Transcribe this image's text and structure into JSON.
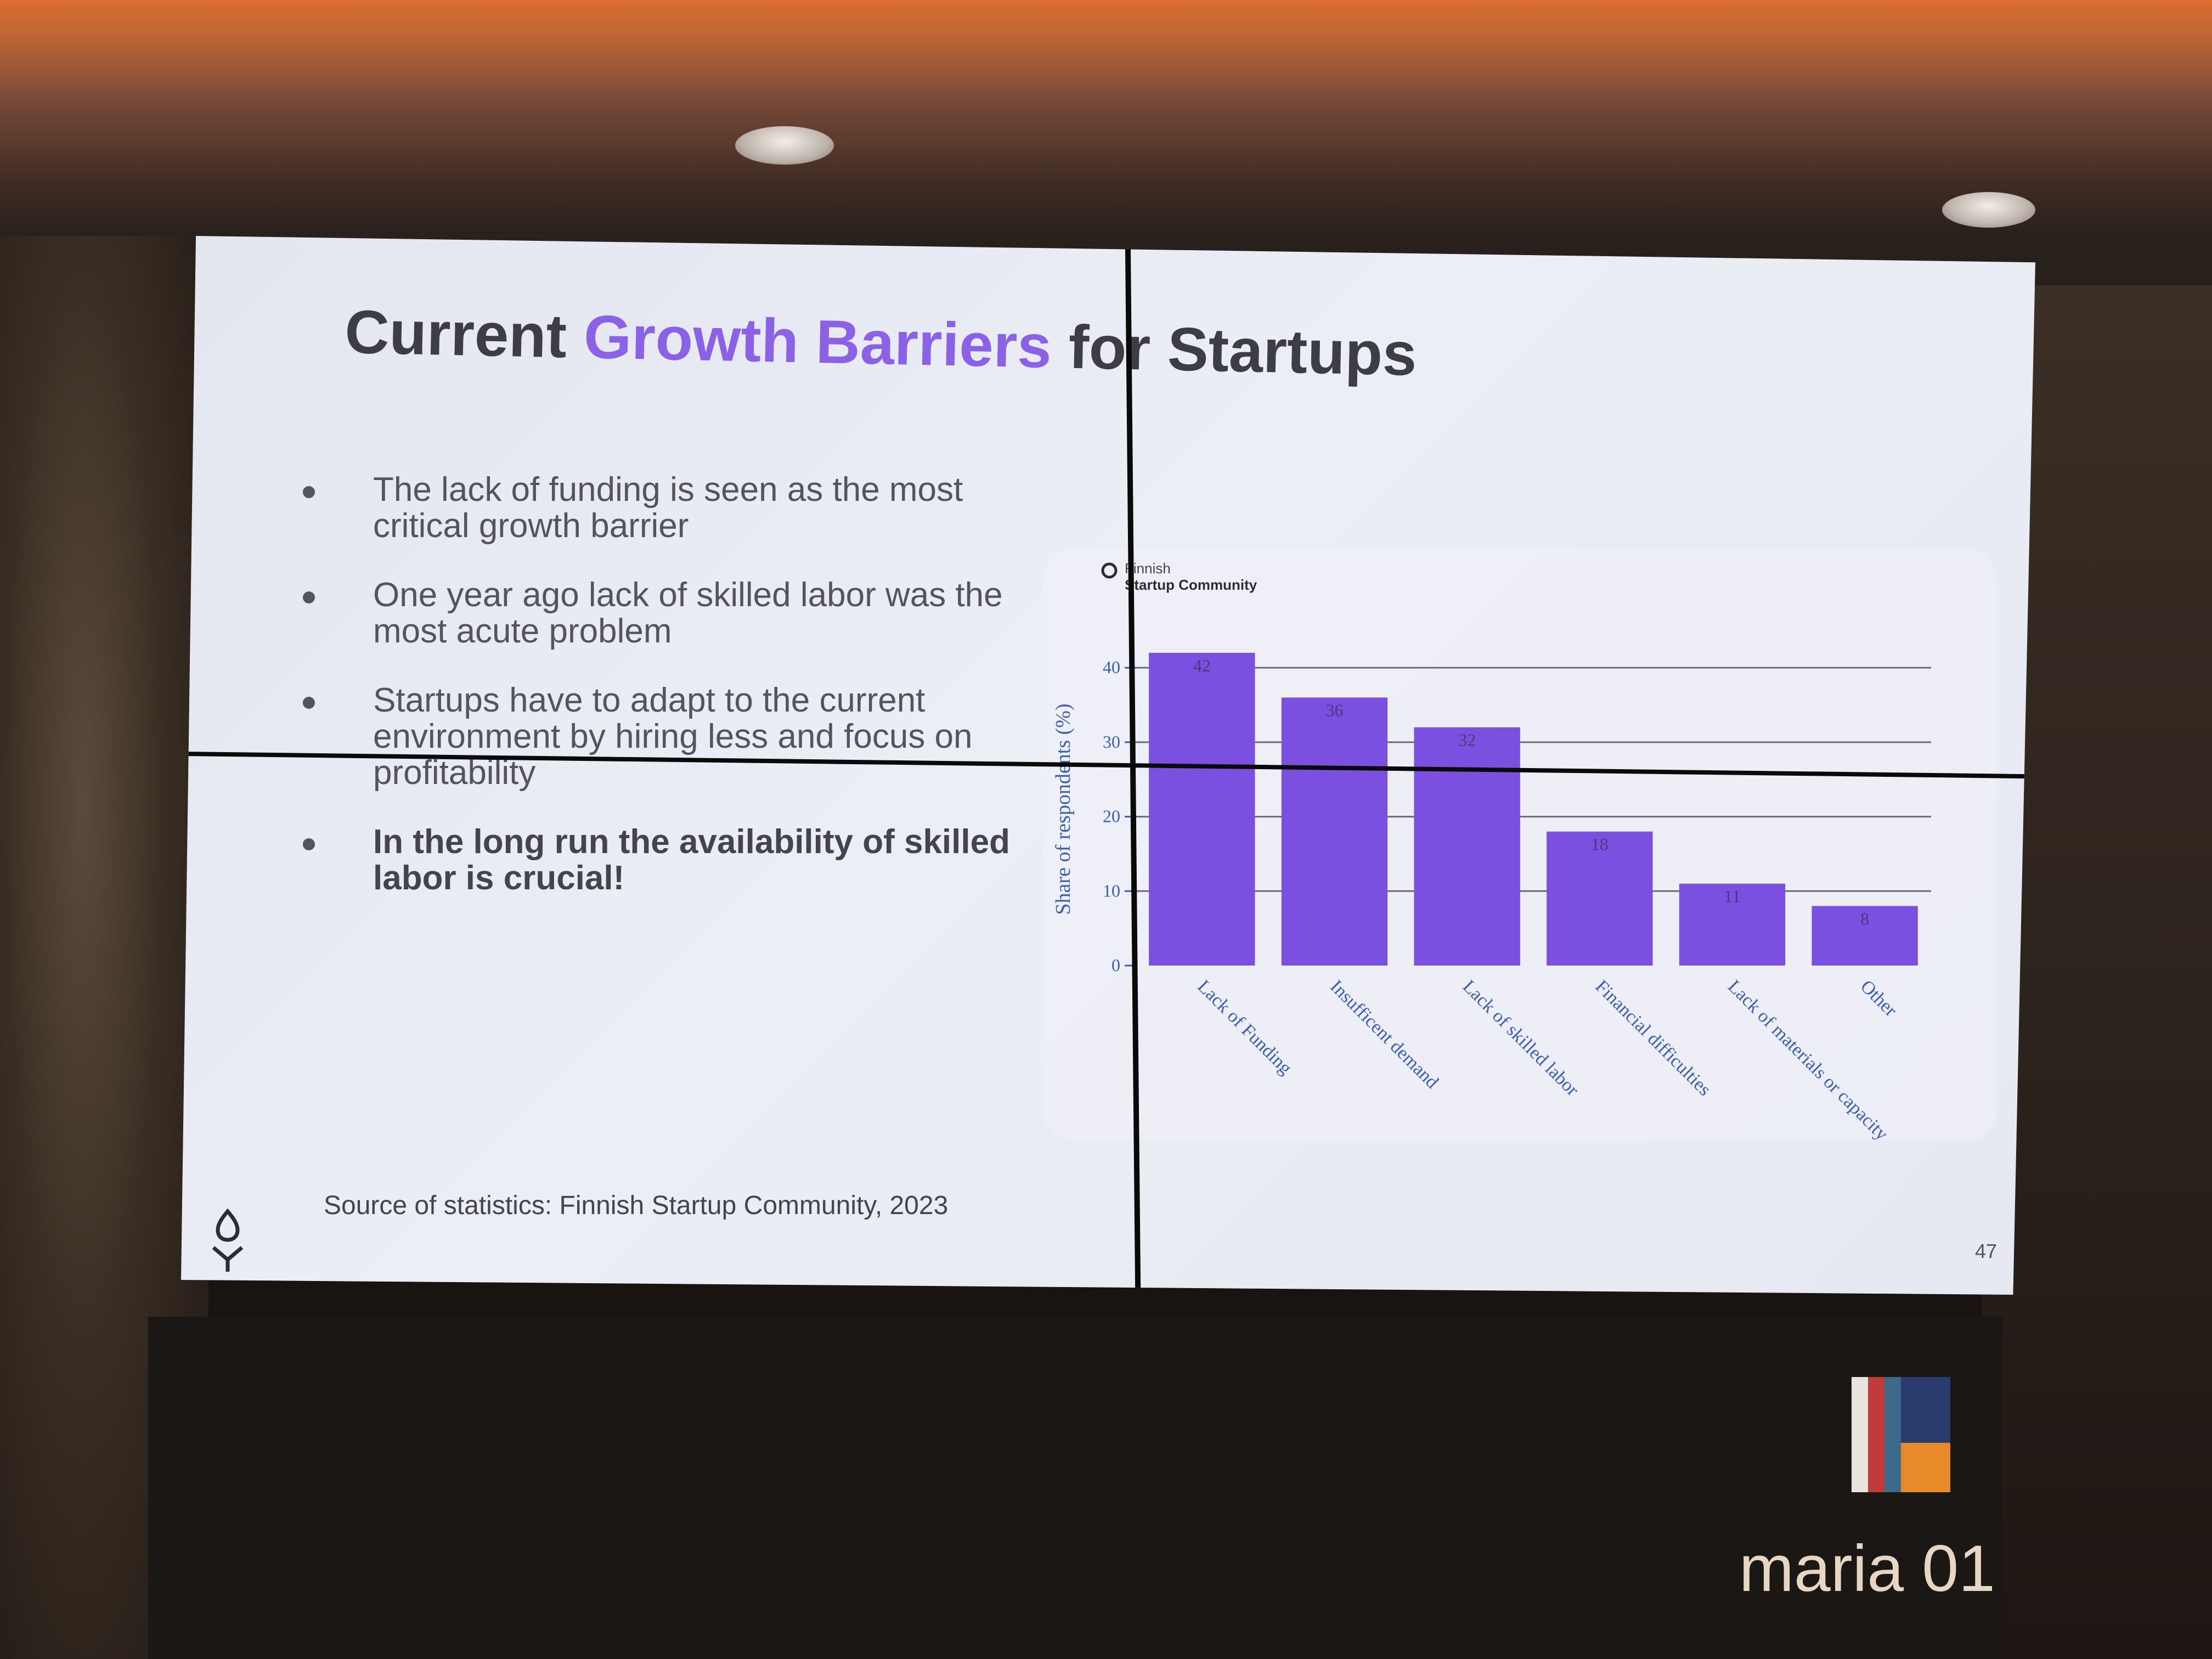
{
  "slide": {
    "title_prefix": "Current",
    "title_accent": "Growth Barriers",
    "title_suffix": "for Startups",
    "bullets": [
      "The lack of funding is seen as the most critical growth barrier",
      "One year ago lack of skilled labor was the most acute problem",
      "Startups have to adapt to the current environment by hiring less and focus on profitability"
    ],
    "bullet_strong": "In the long run the availability of skilled labor is crucial!",
    "source": "Source of statistics: Finnish Startup Community, 2023",
    "page_number": "47",
    "logo_icon": "startup-community-logo-icon"
  },
  "chart_brand": {
    "line1": "Finnish",
    "line2": "Startup Community"
  },
  "room_sign": {
    "text": "maria 01"
  },
  "colors": {
    "accent": "#8b62e6",
    "bar": "#7b4fe0",
    "axis_text": "#3b5fa8"
  },
  "chart_data": {
    "type": "bar",
    "ylabel": "Share of respondents (%)",
    "xlabel": "",
    "ylim": [
      0,
      42
    ],
    "yticks": [
      0,
      10,
      20,
      30,
      40
    ],
    "grid": true,
    "categories": [
      "Lack of Funding",
      "Insufficent demand",
      "Lack of skilled labor",
      "Financial difficulties",
      "Lack of materials or capacity",
      "Other"
    ],
    "values": [
      42,
      36,
      32,
      18,
      11,
      8
    ]
  }
}
